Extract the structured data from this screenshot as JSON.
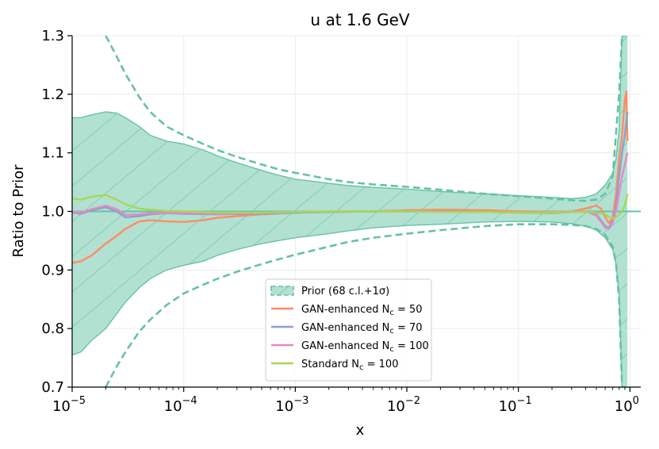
{
  "chart_data": {
    "type": "line",
    "title": "u at 1.6 GeV",
    "xlabel": "x",
    "ylabel": "Ratio to Prior",
    "xscale": "log",
    "xlim": [
      1e-05,
      1.25
    ],
    "ylim": [
      0.7,
      1.3
    ],
    "grid": true,
    "legend_position": "lower-center",
    "x_ticks": [
      {
        "value": 1e-05,
        "base": "10",
        "exp": "−5"
      },
      {
        "value": 0.0001,
        "base": "10",
        "exp": "−4"
      },
      {
        "value": 0.001,
        "base": "10",
        "exp": "−3"
      },
      {
        "value": 0.01,
        "base": "10",
        "exp": "−2"
      },
      {
        "value": 0.1,
        "base": "10",
        "exp": "−1"
      },
      {
        "value": 1,
        "base": "10",
        "exp": "0"
      }
    ],
    "y_ticks": [
      {
        "value": 0.7,
        "label": "0.7"
      },
      {
        "value": 0.8,
        "label": "0.8"
      },
      {
        "value": 0.9,
        "label": "0.9"
      },
      {
        "value": 1.0,
        "label": "1.0"
      },
      {
        "value": 1.1,
        "label": "1.1"
      },
      {
        "value": 1.2,
        "label": "1.2"
      },
      {
        "value": 1.3,
        "label": "1.3"
      }
    ],
    "prior": {
      "name": "Prior (68 c.l.+1σ)",
      "color": "#66c2a5",
      "fill": "#b2e1d2",
      "x": [
        1e-05,
        1.2e-05,
        1.5e-05,
        2e-05,
        2.5e-05,
        3e-05,
        4e-05,
        5e-05,
        7e-05,
        0.0001,
        0.00015,
        0.0002,
        0.0003,
        0.0005,
        0.0007,
        0.001,
        0.002,
        0.003,
        0.005,
        0.01,
        0.02,
        0.05,
        0.1,
        0.2,
        0.3,
        0.4,
        0.5,
        0.6,
        0.7,
        0.75,
        0.8,
        0.85,
        0.9,
        0.95
      ],
      "upper": [
        1.16,
        1.16,
        1.165,
        1.17,
        1.168,
        1.16,
        1.145,
        1.13,
        1.12,
        1.115,
        1.105,
        1.095,
        1.083,
        1.07,
        1.062,
        1.055,
        1.048,
        1.044,
        1.041,
        1.038,
        1.034,
        1.03,
        1.027,
        1.024,
        1.022,
        1.024,
        1.03,
        1.045,
        1.065,
        1.09,
        1.14,
        1.3,
        1.3,
        1.3
      ],
      "lower": [
        0.755,
        0.76,
        0.78,
        0.8,
        0.825,
        0.845,
        0.87,
        0.885,
        0.9,
        0.908,
        0.915,
        0.925,
        0.935,
        0.945,
        0.95,
        0.955,
        0.962,
        0.967,
        0.972,
        0.976,
        0.978,
        0.982,
        0.983,
        0.982,
        0.979,
        0.975,
        0.968,
        0.955,
        0.935,
        0.91,
        0.86,
        0.7,
        0.7,
        0.7
      ],
      "err_upper_x": [
        2e-05,
        2.5e-05,
        3e-05,
        4e-05,
        5e-05,
        7e-05,
        0.0001,
        0.00015,
        0.0002,
        0.0003,
        0.0005,
        0.0007,
        0.001,
        0.002,
        0.003,
        0.005,
        0.01,
        0.02,
        0.05,
        0.1,
        0.2,
        0.3,
        0.4,
        0.5,
        0.6,
        0.7,
        0.8,
        0.85,
        0.9
      ],
      "err_upper": [
        1.3,
        1.265,
        1.235,
        1.195,
        1.17,
        1.145,
        1.13,
        1.115,
        1.105,
        1.093,
        1.08,
        1.072,
        1.066,
        1.055,
        1.05,
        1.046,
        1.042,
        1.037,
        1.03,
        1.026,
        1.022,
        1.019,
        1.018,
        1.02,
        1.03,
        1.06,
        1.2,
        1.3,
        1.3
      ],
      "err_lower_x": [
        2e-05,
        2.5e-05,
        3e-05,
        4e-05,
        5e-05,
        7e-05,
        0.0001,
        0.00015,
        0.0002,
        0.0003,
        0.0005,
        0.0007,
        0.001,
        0.002,
        0.003,
        0.005,
        0.01,
        0.02,
        0.05,
        0.1,
        0.2,
        0.3,
        0.4,
        0.5,
        0.6,
        0.7,
        0.75,
        0.8,
        0.85
      ],
      "err_lower": [
        0.7,
        0.735,
        0.76,
        0.795,
        0.815,
        0.84,
        0.86,
        0.875,
        0.885,
        0.897,
        0.91,
        0.918,
        0.926,
        0.94,
        0.948,
        0.955,
        0.962,
        0.968,
        0.975,
        0.978,
        0.978,
        0.977,
        0.975,
        0.97,
        0.96,
        0.94,
        0.91,
        0.85,
        0.7
      ]
    },
    "series": [
      {
        "name_prefix": "GAN-enhanced N",
        "sub": "c",
        "suffix": " = 50",
        "color": "#fc8d62",
        "x": [
          1e-05,
          1.2e-05,
          1.5e-05,
          2e-05,
          2.5e-05,
          3e-05,
          4e-05,
          5e-05,
          7e-05,
          0.0001,
          0.00015,
          0.0002,
          0.0003,
          0.0005,
          0.001,
          0.002,
          0.005,
          0.01,
          0.02,
          0.05,
          0.1,
          0.2,
          0.3,
          0.4,
          0.5,
          0.55,
          0.6,
          0.65,
          0.7,
          0.75,
          0.8,
          0.85,
          0.9,
          0.93,
          0.95
        ],
        "y": [
          0.912,
          0.915,
          0.925,
          0.945,
          0.958,
          0.97,
          0.983,
          0.985,
          0.983,
          0.982,
          0.985,
          0.989,
          0.992,
          0.995,
          0.998,
          0.999,
          1.0,
          1.002,
          1.003,
          1.002,
          1.0,
          0.999,
          1.0,
          1.005,
          1.01,
          1.005,
          0.99,
          0.98,
          0.99,
          1.03,
          1.09,
          1.13,
          1.19,
          1.205,
          1.12
        ]
      },
      {
        "name_prefix": "GAN-enhanced N",
        "sub": "c",
        "suffix": " = 70",
        "color": "#8da0cb",
        "x": [
          1e-05,
          1.2e-05,
          1.5e-05,
          2e-05,
          2.5e-05,
          3e-05,
          4e-05,
          5e-05,
          7e-05,
          0.0001,
          0.0002,
          0.0005,
          0.001,
          0.002,
          0.005,
          0.01,
          0.02,
          0.05,
          0.1,
          0.2,
          0.3,
          0.4,
          0.5,
          0.55,
          0.6,
          0.65,
          0.7,
          0.75,
          0.8,
          0.85,
          0.9,
          0.95
        ],
        "y": [
          0.998,
          0.996,
          1.002,
          1.007,
          1.0,
          0.99,
          0.992,
          0.995,
          0.997,
          0.996,
          0.995,
          0.996,
          0.998,
          0.999,
          1.0,
          1.0,
          1.0,
          0.999,
          0.998,
          0.997,
          0.999,
          1.0,
          0.995,
          0.985,
          0.975,
          0.972,
          0.985,
          1.01,
          1.06,
          1.1,
          1.13,
          1.17
        ]
      },
      {
        "name_prefix": "GAN-enhanced N",
        "sub": "c",
        "suffix": " = 100",
        "color": "#e78ac3",
        "x": [
          1e-05,
          1.2e-05,
          1.5e-05,
          2e-05,
          2.5e-05,
          3e-05,
          4e-05,
          5e-05,
          7e-05,
          0.0001,
          0.0002,
          0.0005,
          0.001,
          0.002,
          0.005,
          0.01,
          0.02,
          0.05,
          0.1,
          0.2,
          0.3,
          0.4,
          0.5,
          0.55,
          0.6,
          0.65,
          0.7,
          0.75,
          0.8,
          0.85,
          0.9,
          0.95
        ],
        "y": [
          1.0,
          0.998,
          1.004,
          1.01,
          1.004,
          0.994,
          0.995,
          0.997,
          0.998,
          0.997,
          0.996,
          0.997,
          0.999,
          1.0,
          1.0,
          1.001,
          1.0,
          0.999,
          0.998,
          0.998,
          1.0,
          1.0,
          0.993,
          0.982,
          0.972,
          0.97,
          0.98,
          1.0,
          1.03,
          1.06,
          1.08,
          1.1
        ]
      },
      {
        "name_prefix": "Standard N",
        "sub": "c",
        "suffix": " = 100",
        "color": "#a6d854",
        "x": [
          1e-05,
          1.2e-05,
          1.5e-05,
          2e-05,
          2.5e-05,
          3e-05,
          4e-05,
          5e-05,
          7e-05,
          0.0001,
          0.0002,
          0.0005,
          0.001,
          0.002,
          0.005,
          0.01,
          0.02,
          0.05,
          0.1,
          0.2,
          0.3,
          0.4,
          0.5,
          0.6,
          0.65,
          0.7,
          0.75,
          0.8,
          0.85,
          0.9,
          0.95
        ],
        "y": [
          1.022,
          1.02,
          1.025,
          1.028,
          1.02,
          1.012,
          1.005,
          1.003,
          1.001,
          1.0,
          0.998,
          0.998,
          0.999,
          1.0,
          1.0,
          1.0,
          0.999,
          0.999,
          0.998,
          0.998,
          0.999,
          0.999,
          0.998,
          0.995,
          0.99,
          0.988,
          0.99,
          0.995,
          1.0,
          1.01,
          1.03
        ]
      }
    ]
  }
}
